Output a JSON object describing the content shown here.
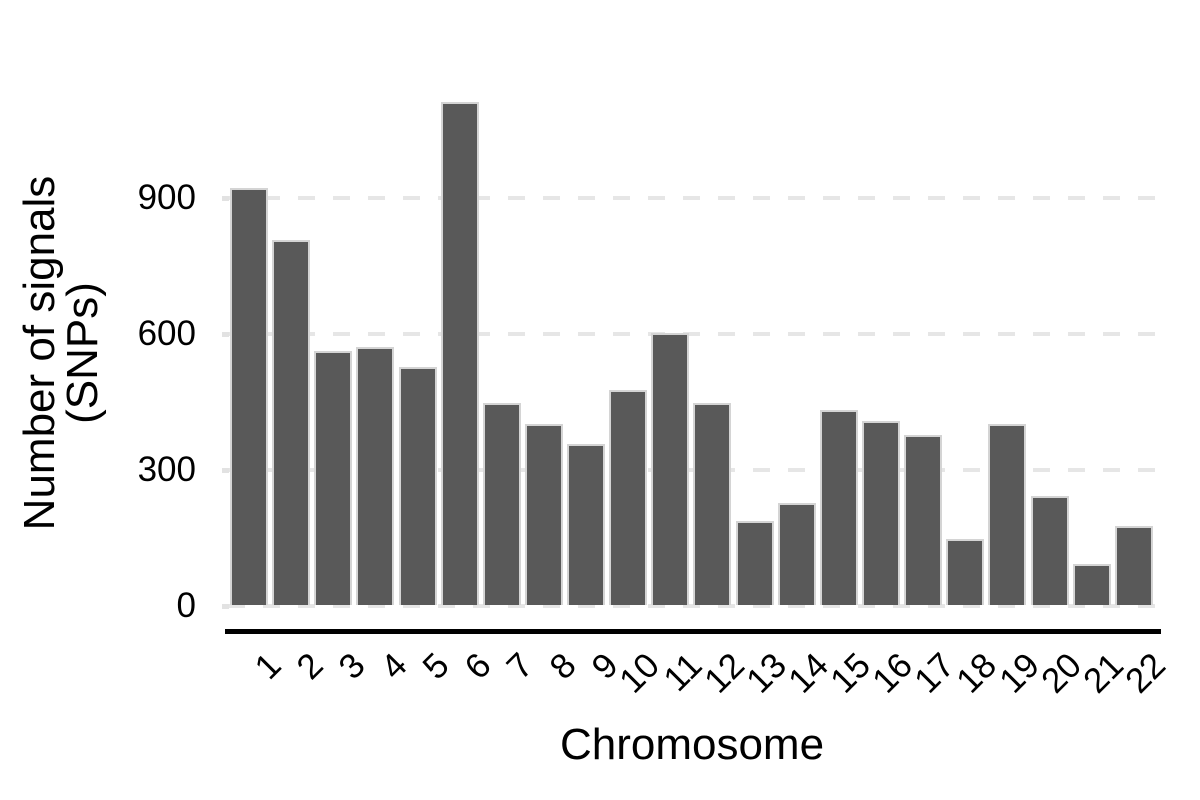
{
  "chart_data": {
    "type": "bar",
    "title": "",
    "xlabel": "Chromosome",
    "ylabel": "Number of signals (SNPs)",
    "ylabel_lines": [
      "Number of signals",
      "(SNPs)"
    ],
    "categories": [
      "1",
      "2",
      "3",
      "4",
      "5",
      "6",
      "7",
      "8",
      "9",
      "10",
      "11",
      "12",
      "13",
      "14",
      "15",
      "16",
      "17",
      "18",
      "19",
      "20",
      "21",
      "22"
    ],
    "values": [
      920,
      805,
      560,
      570,
      525,
      1110,
      445,
      400,
      355,
      475,
      600,
      445,
      185,
      225,
      430,
      405,
      375,
      145,
      400,
      240,
      90,
      175
    ],
    "yticks": [
      0,
      300,
      600,
      900
    ],
    "ylim": [
      0,
      1170
    ],
    "grid": "horizontal dashed gridlines at y ticks, drawn behind bars",
    "legend": "none",
    "x_tick_label_rotation_deg": 45,
    "colors": {
      "bar_fill": "#595959",
      "bar_outline": "#d4d4d4",
      "gridline": "#e6e6e6",
      "tick_mark": "#e2e2e2",
      "axis_line": "#000000",
      "text": "#000000",
      "background": "#ffffff"
    }
  }
}
